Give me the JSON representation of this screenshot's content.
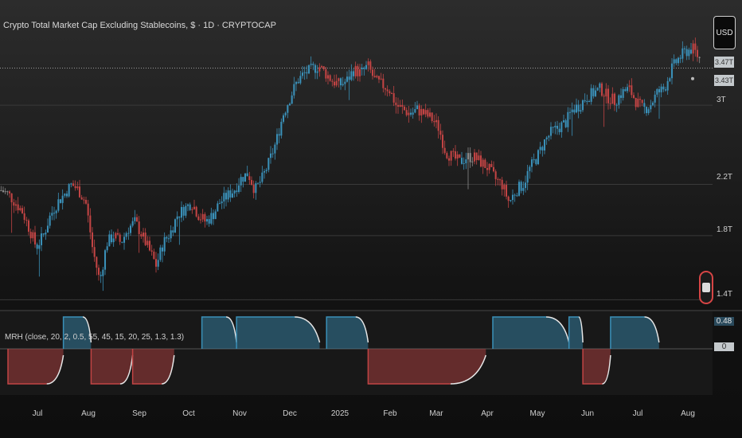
{
  "title": "Crypto Total Market Cap Excluding Stablecoins, $ · 1D · CRYPTOCAP",
  "currency_button": "USD",
  "price_labels": [
    "3.47T",
    "3.43T"
  ],
  "indicator_label": "MRH (close, 20, 2, 0.5, 55, 45, 15, 20, 25, 1.3, 1.3)",
  "indicator_values": [
    "0.48",
    "0"
  ],
  "colors": {
    "up": "#3a90b8",
    "down": "#c24444",
    "neutral": "#8a8a8a"
  },
  "chart_data": {
    "type": "candlestick",
    "yscale": "log",
    "y_ticks": [
      "1.4T",
      "1.8T",
      "2.2T",
      "3T"
    ],
    "x_ticks": [
      "Jul",
      "Aug",
      "Sep",
      "Oct",
      "Nov",
      "Dec",
      "2025",
      "Feb",
      "Mar",
      "Apr",
      "May",
      "Jun",
      "Jul",
      "Aug"
    ],
    "close_path_trillions": [
      2.15,
      2.12,
      2.05,
      1.98,
      1.85,
      1.72,
      1.8,
      1.95,
      2.05,
      2.12,
      2.2,
      2.15,
      2.05,
      1.7,
      1.5,
      1.75,
      1.8,
      1.75,
      1.85,
      1.9,
      1.8,
      1.7,
      1.6,
      1.75,
      1.82,
      1.95,
      2.0,
      2.05,
      1.95,
      1.9,
      1.95,
      2.05,
      2.1,
      2.15,
      2.25,
      2.3,
      2.15,
      2.25,
      2.4,
      2.6,
      2.9,
      3.1,
      3.3,
      3.4,
      3.45,
      3.5,
      3.4,
      3.3,
      3.25,
      3.3,
      3.45,
      3.4,
      3.5,
      3.3,
      3.25,
      3.2,
      3.0,
      2.95,
      2.9,
      2.95,
      2.9,
      2.85,
      2.75,
      2.5,
      2.45,
      2.4,
      2.45,
      2.45,
      2.4,
      2.35,
      2.25,
      2.2,
      2.05,
      2.15,
      2.2,
      2.35,
      2.45,
      2.6,
      2.7,
      2.75,
      2.8,
      2.95,
      3.0,
      3.1,
      3.15,
      3.2,
      3.1,
      3.05,
      3.15,
      3.2,
      3.05,
      2.95,
      3.0,
      3.15,
      3.2,
      3.45,
      3.6,
      3.7,
      3.75,
      3.6
    ],
    "oscillator": {
      "range": [
        -1,
        1
      ],
      "regimes": [
        {
          "state": "down",
          "from": 0.0,
          "to": 0.08
        },
        {
          "state": "up",
          "from": 0.08,
          "to": 0.12
        },
        {
          "state": "down",
          "from": 0.12,
          "to": 0.18
        },
        {
          "state": "down",
          "from": 0.18,
          "to": 0.24
        },
        {
          "state": "up",
          "from": 0.28,
          "to": 0.33
        },
        {
          "state": "up",
          "from": 0.33,
          "to": 0.45
        },
        {
          "state": "up",
          "from": 0.46,
          "to": 0.52
        },
        {
          "state": "down",
          "from": 0.52,
          "to": 0.69
        },
        {
          "state": "up",
          "from": 0.7,
          "to": 0.81
        },
        {
          "state": "up",
          "from": 0.81,
          "to": 0.83
        },
        {
          "state": "down",
          "from": 0.83,
          "to": 0.87
        },
        {
          "state": "up",
          "from": 0.87,
          "to": 0.94
        }
      ]
    }
  }
}
